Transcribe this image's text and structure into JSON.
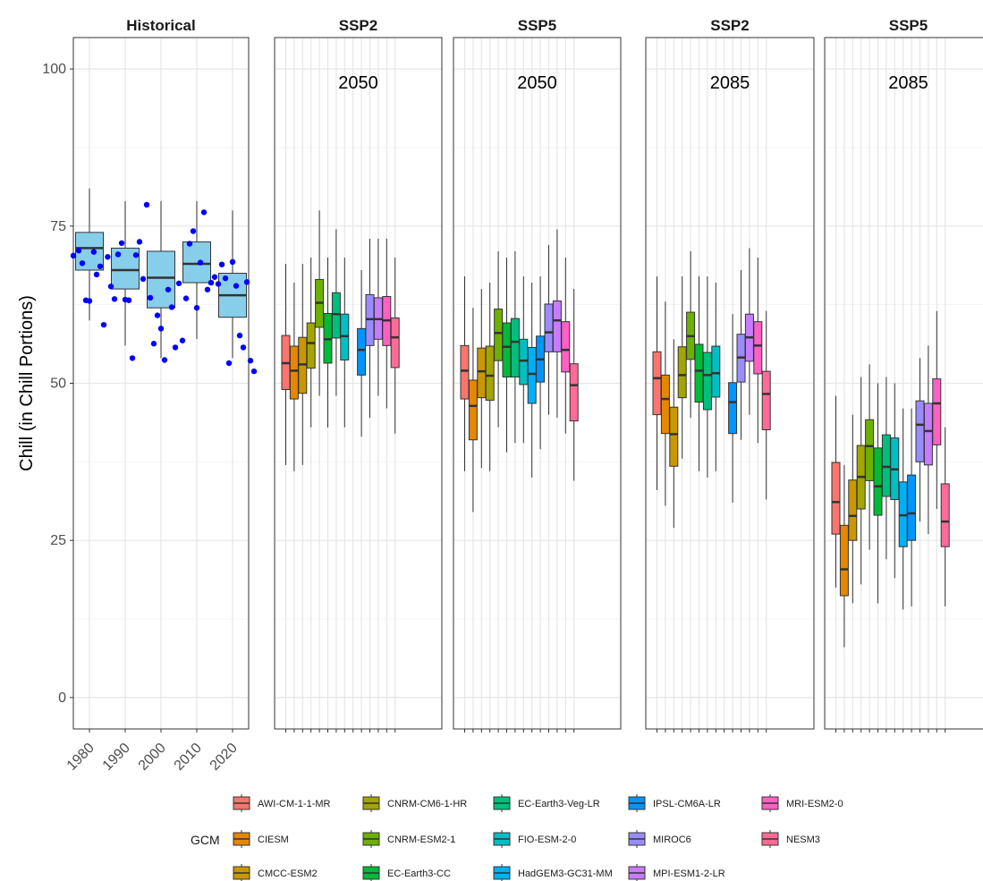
{
  "chart_data": {
    "type": "box",
    "ylabel": "Chill (in Chill Portions)",
    "ylim": [
      -5,
      105
    ],
    "yticks": [
      0,
      25,
      50,
      75,
      100
    ],
    "legend": {
      "title": "GCM",
      "placement": "bottom",
      "entries": [
        {
          "name": "AWI-CM-1-1-MR",
          "color": "#F8766D"
        },
        {
          "name": "CIESM",
          "color": "#E58700"
        },
        {
          "name": "CMCC-ESM2",
          "color": "#C99800"
        },
        {
          "name": "CNRM-CM6-1-HR",
          "color": "#A3A500"
        },
        {
          "name": "CNRM-ESM2-1",
          "color": "#6BB100"
        },
        {
          "name": "EC-Earth3-CC",
          "color": "#00BA38"
        },
        {
          "name": "EC-Earth3-Veg-LR",
          "color": "#00BF7D"
        },
        {
          "name": "FIO-ESM-2-0",
          "color": "#00BFC4"
        },
        {
          "name": "HadGEM3-GC31-MM",
          "color": "#00B0F6"
        },
        {
          "name": "IPSL-CM6A-LR",
          "color": "#0094FF"
        },
        {
          "name": "MIROC6",
          "color": "#9A8CFF"
        },
        {
          "name": "MPI-ESM1-2-LR",
          "color": "#C77CFF"
        },
        {
          "name": "MRI-ESM2-0",
          "color": "#FF61C3"
        },
        {
          "name": "NESM3",
          "color": "#FF6B97"
        }
      ]
    },
    "historical": {
      "title": "Historical",
      "x_ticks": [
        1980,
        1990,
        2000,
        2010,
        2020
      ],
      "box_color": "#87CEEB",
      "boxes": [
        {
          "x": 1980,
          "min": 60,
          "q1": 68,
          "median": 71.5,
          "q3": 74,
          "max": 81
        },
        {
          "x": 1990,
          "min": 56,
          "q1": 65,
          "median": 68,
          "q3": 71.5,
          "max": 79
        },
        {
          "x": 2000,
          "min": 54,
          "q1": 62,
          "median": 66.8,
          "q3": 71,
          "max": 79
        },
        {
          "x": 2010,
          "min": 57,
          "q1": 66,
          "median": 69,
          "q3": 72.5,
          "max": 79
        },
        {
          "x": 2020,
          "min": 54,
          "q1": 60.5,
          "median": 64,
          "q3": 67.5,
          "max": 77.5
        }
      ],
      "points": [
        [
          1975.5,
          70.3
        ],
        [
          1977,
          71.1
        ],
        [
          1978,
          69.1
        ],
        [
          1979,
          63.2
        ],
        [
          1980,
          63.1
        ],
        [
          1981.2,
          70.9
        ],
        [
          1982,
          67.3
        ],
        [
          1983,
          68.6
        ],
        [
          1984,
          59.3
        ],
        [
          1985.1,
          70.1
        ],
        [
          1986,
          65.4
        ],
        [
          1987,
          63.4
        ],
        [
          1988,
          70.5
        ],
        [
          1989,
          72.3
        ],
        [
          1990,
          63.3
        ],
        [
          1991,
          63.2
        ],
        [
          1992,
          54
        ],
        [
          1993,
          70.4
        ],
        [
          1994,
          72.5
        ],
        [
          1995,
          66.6
        ],
        [
          1996,
          78.4
        ],
        [
          1997,
          63.6
        ],
        [
          1998,
          56.3
        ],
        [
          1999,
          60.8
        ],
        [
          2000,
          58.7
        ],
        [
          2001,
          53.7
        ],
        [
          2002,
          64.9
        ],
        [
          2003,
          62.1
        ],
        [
          2004,
          55.7
        ],
        [
          2005,
          65.9
        ],
        [
          2006,
          56.8
        ],
        [
          2007,
          63.5
        ],
        [
          2008,
          72.2
        ],
        [
          2009,
          74.2
        ],
        [
          2010,
          62
        ],
        [
          2011,
          69.2
        ],
        [
          2012,
          77.2
        ],
        [
          2013,
          64.9
        ],
        [
          2014,
          66
        ],
        [
          2015,
          66.9
        ],
        [
          2016,
          65.8
        ],
        [
          2017,
          68.9
        ],
        [
          2018,
          66.7
        ],
        [
          2019,
          53.2
        ],
        [
          2020,
          69.3
        ],
        [
          2021,
          65.5
        ],
        [
          2022,
          57.6
        ],
        [
          2023,
          55.7
        ],
        [
          2024,
          66.1
        ],
        [
          2025,
          53.6
        ],
        [
          2026,
          51.9
        ]
      ]
    },
    "scenarios": [
      {
        "title": "SSP2",
        "year": "2050",
        "boxes": [
          {
            "gcm": "AWI-CM-1-1-MR",
            "min": 37,
            "q1": 49,
            "median": 53.2,
            "q3": 57.6,
            "max": 69
          },
          {
            "gcm": "CIESM",
            "min": 36,
            "q1": 47.5,
            "median": 52,
            "q3": 55.9,
            "max": 66
          },
          {
            "gcm": "CMCC-ESM2",
            "min": 37,
            "q1": 48.4,
            "median": 53,
            "q3": 57.3,
            "max": 69
          },
          {
            "gcm": "CNRM-CM6-1-HR",
            "min": 43,
            "q1": 52.4,
            "median": 56.4,
            "q3": 59.6,
            "max": 70
          },
          {
            "gcm": "CNRM-ESM2-1",
            "min": 48,
            "q1": 58.9,
            "median": 62.8,
            "q3": 66.5,
            "max": 77.5
          },
          {
            "gcm": "EC-Earth3-CC",
            "min": 43,
            "q1": 53.2,
            "median": 57,
            "q3": 61.1,
            "max": 70
          },
          {
            "gcm": "EC-Earth3-Veg-LR",
            "min": 48,
            "q1": 57.2,
            "median": 61,
            "q3": 64.4,
            "max": 74.5
          },
          {
            "gcm": "FIO-ESM-2-0",
            "min": 43,
            "q1": 53.7,
            "median": 57.5,
            "q3": 61,
            "max": 70
          },
          {
            "gcm": "HadGEM3-GC31-MM",
            "min": null,
            "q1": null,
            "median": null,
            "q3": null,
            "max": null
          },
          {
            "gcm": "IPSL-CM6A-LR",
            "min": 41.5,
            "q1": 51.3,
            "median": 55.3,
            "q3": 58.7,
            "max": 68
          },
          {
            "gcm": "MIROC6",
            "min": 44.5,
            "q1": 56,
            "median": 60.2,
            "q3": 64.1,
            "max": 73
          },
          {
            "gcm": "MPI-ESM1-2-LR",
            "min": 48,
            "q1": 57,
            "median": 60.2,
            "q3": 63.6,
            "max": 73
          },
          {
            "gcm": "MRI-ESM2-0",
            "min": 46,
            "q1": 56,
            "median": 60,
            "q3": 63.8,
            "max": 73
          },
          {
            "gcm": "NESM3",
            "min": 42,
            "q1": 52.5,
            "median": 57.3,
            "q3": 60.4,
            "max": 70
          }
        ]
      },
      {
        "title": "SSP5",
        "year": "2050",
        "boxes": [
          {
            "gcm": "AWI-CM-1-1-MR",
            "min": 36,
            "q1": 47.5,
            "median": 52,
            "q3": 56,
            "max": 67
          },
          {
            "gcm": "CIESM",
            "min": 29.5,
            "q1": 41,
            "median": 46.4,
            "q3": 50.5,
            "max": 62
          },
          {
            "gcm": "CMCC-ESM2",
            "min": 36.5,
            "q1": 47.7,
            "median": 51.9,
            "q3": 55.6,
            "max": 65
          },
          {
            "gcm": "CNRM-CM6-1-HR",
            "min": 36,
            "q1": 47.3,
            "median": 51.2,
            "q3": 55.9,
            "max": 66
          },
          {
            "gcm": "CNRM-ESM2-1",
            "min": 43,
            "q1": 53.6,
            "median": 58,
            "q3": 61.8,
            "max": 71
          },
          {
            "gcm": "EC-Earth3-CC",
            "min": 39,
            "q1": 51,
            "median": 55.8,
            "q3": 59.6,
            "max": 70
          },
          {
            "gcm": "EC-Earth3-Veg-LR",
            "min": 40.5,
            "q1": 51,
            "median": 56.6,
            "q3": 60.3,
            "max": 71
          },
          {
            "gcm": "FIO-ESM-2-0",
            "min": 40.5,
            "q1": 49.8,
            "median": 53.6,
            "q3": 57,
            "max": 67
          },
          {
            "gcm": "HadGEM3-GC31-MM",
            "min": 35,
            "q1": 46.8,
            "median": 51.5,
            "q3": 55.7,
            "max": 66
          },
          {
            "gcm": "IPSL-CM6A-LR",
            "min": 39.5,
            "q1": 50.2,
            "median": 53.8,
            "q3": 57.5,
            "max": 67
          },
          {
            "gcm": "MIROC6",
            "min": 45,
            "q1": 55,
            "median": 58.1,
            "q3": 62.6,
            "max": 72
          },
          {
            "gcm": "MPI-ESM1-2-LR",
            "min": 44.5,
            "q1": 55,
            "median": 60,
            "q3": 63.1,
            "max": 74.5
          },
          {
            "gcm": "MRI-ESM2-0",
            "min": 42,
            "q1": 51.8,
            "median": 55.3,
            "q3": 59.8,
            "max": 70
          },
          {
            "gcm": "NESM3",
            "min": 34.5,
            "q1": 44,
            "median": 49.7,
            "q3": 53.1,
            "max": 65
          }
        ]
      },
      {
        "title": "SSP2",
        "year": "2085",
        "boxes": [
          {
            "gcm": "AWI-CM-1-1-MR",
            "min": 33,
            "q1": 45,
            "median": 50.8,
            "q3": 55,
            "max": 67
          },
          {
            "gcm": "CIESM",
            "min": 30.5,
            "q1": 42,
            "median": 47.5,
            "q3": 51.3,
            "max": 63
          },
          {
            "gcm": "CMCC-ESM2",
            "min": 27,
            "q1": 36.8,
            "median": 41.9,
            "q3": 46.2,
            "max": 57
          },
          {
            "gcm": "CNRM-CM6-1-HR",
            "min": 38,
            "q1": 47.7,
            "median": 51.3,
            "q3": 55.8,
            "max": 67
          },
          {
            "gcm": "CNRM-ESM2-1",
            "min": 44.5,
            "q1": 53.8,
            "median": 57.5,
            "q3": 61.3,
            "max": 71
          },
          {
            "gcm": "EC-Earth3-CC",
            "min": 36,
            "q1": 47,
            "median": 52,
            "q3": 56.2,
            "max": 67
          },
          {
            "gcm": "EC-Earth3-Veg-LR",
            "min": 35,
            "q1": 45.8,
            "median": 51.3,
            "q3": 54.9,
            "max": 67
          },
          {
            "gcm": "FIO-ESM-2-0",
            "min": 36,
            "q1": 47.8,
            "median": 51.6,
            "q3": 55.9,
            "max": 66
          },
          {
            "gcm": "HadGEM3-GC31-MM",
            "min": null,
            "q1": null,
            "median": null,
            "q3": null,
            "max": null
          },
          {
            "gcm": "IPSL-CM6A-LR",
            "min": 31,
            "q1": 42,
            "median": 47,
            "q3": 50.1,
            "max": 61
          },
          {
            "gcm": "MIROC6",
            "min": 41,
            "q1": 50.2,
            "median": 54.1,
            "q3": 57.8,
            "max": 68
          },
          {
            "gcm": "MPI-ESM1-2-LR",
            "min": 45,
            "q1": 53.5,
            "median": 57.3,
            "q3": 61,
            "max": 71.5
          },
          {
            "gcm": "MRI-ESM2-0",
            "min": 40.5,
            "q1": 51.5,
            "median": 56,
            "q3": 59.8,
            "max": 70
          },
          {
            "gcm": "NESM3",
            "min": 31.5,
            "q1": 42.6,
            "median": 48.3,
            "q3": 51.9,
            "max": 61.5
          }
        ]
      },
      {
        "title": "SSP5",
        "year": "2085",
        "boxes": [
          {
            "gcm": "AWI-CM-1-1-MR",
            "min": 17.5,
            "q1": 26,
            "median": 31.1,
            "q3": 37.4,
            "max": 48
          },
          {
            "gcm": "CIESM",
            "min": 8,
            "q1": 16.2,
            "median": 20.4,
            "q3": 27.4,
            "max": 37
          },
          {
            "gcm": "CMCC-ESM2",
            "min": 15,
            "q1": 25,
            "median": 28.9,
            "q3": 34.6,
            "max": 45
          },
          {
            "gcm": "CNRM-CM6-1-HR",
            "min": 18,
            "q1": 30,
            "median": 35.1,
            "q3": 40.1,
            "max": 51
          },
          {
            "gcm": "CNRM-ESM2-1",
            "min": 23.5,
            "q1": 34.5,
            "median": 40,
            "q3": 44.2,
            "max": 53
          },
          {
            "gcm": "EC-Earth3-CC",
            "min": 15,
            "q1": 29,
            "median": 33.6,
            "q3": 39.7,
            "max": 50
          },
          {
            "gcm": "EC-Earth3-Veg-LR",
            "min": 22,
            "q1": 32,
            "median": 36.7,
            "q3": 41.8,
            "max": 51
          },
          {
            "gcm": "FIO-ESM-2-0",
            "min": 19,
            "q1": 31.5,
            "median": 36.3,
            "q3": 41.3,
            "max": 50
          },
          {
            "gcm": "HadGEM3-GC31-MM",
            "min": 14,
            "q1": 24,
            "median": 29,
            "q3": 34.3,
            "max": 46
          },
          {
            "gcm": "IPSL-CM6A-LR",
            "min": 14.5,
            "q1": 25,
            "median": 29.3,
            "q3": 35.4,
            "max": 46
          },
          {
            "gcm": "MIROC6",
            "min": 28,
            "q1": 37.5,
            "median": 43.4,
            "q3": 47.2,
            "max": 54
          },
          {
            "gcm": "MPI-ESM1-2-LR",
            "min": 26,
            "q1": 37,
            "median": 42.4,
            "q3": 46.8,
            "max": 56
          },
          {
            "gcm": "MRI-ESM2-0",
            "min": 30,
            "q1": 40.2,
            "median": 46.8,
            "q3": 50.7,
            "max": 61.5
          },
          {
            "gcm": "NESM3",
            "min": 14.5,
            "q1": 24,
            "median": 28,
            "q3": 34,
            "max": 43
          }
        ]
      }
    ]
  }
}
